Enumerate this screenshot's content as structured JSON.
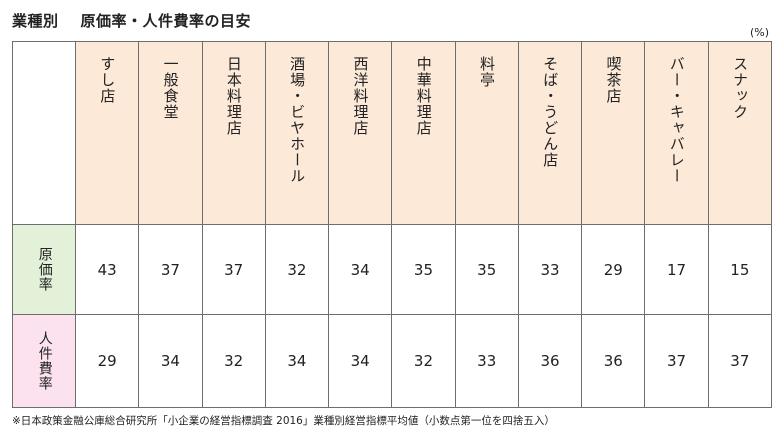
{
  "title": {
    "main": "業種別",
    "sub": "原価率・人件費率の目安"
  },
  "unit": "(%)",
  "table": {
    "columns": [
      "すし店",
      "一般食堂",
      "日本料理店",
      "酒場・ビヤホール",
      "西洋料理店",
      "中華料理店",
      "料亭",
      "そば・うどん店",
      "喫茶店",
      "バー・キャバレー",
      "スナック"
    ],
    "rows": [
      {
        "label": "原価率",
        "values": [
          "43",
          "37",
          "37",
          "32",
          "34",
          "35",
          "35",
          "33",
          "29",
          "17",
          "15"
        ],
        "color": "#e3f1d8"
      },
      {
        "label": "人件費率",
        "values": [
          "29",
          "34",
          "32",
          "34",
          "34",
          "32",
          "33",
          "36",
          "36",
          "37",
          "37"
        ],
        "color": "#fbe2ee"
      }
    ],
    "header_color": "#fce9d8"
  },
  "footnote": "※日本政策金融公庫総合研究所「小企業の経営指標調査 2016」業種別経営指標平均値（小数点第一位を四捨五入）"
}
